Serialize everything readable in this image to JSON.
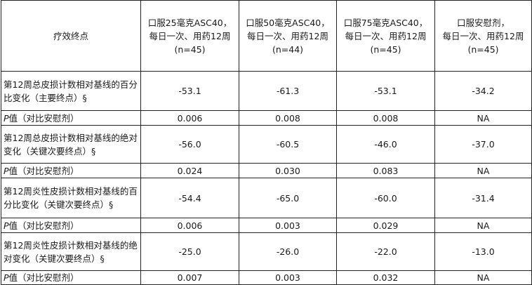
{
  "header": {
    "endpoint": "疗效终点",
    "groups": [
      {
        "line1": "口服25毫克ASC40，",
        "line2": "每日一次、用药12周",
        "line3": "(n=45)"
      },
      {
        "line1": "口服50毫克ASC40，",
        "line2": "每日一次、用药12周",
        "line3": "(n=44)"
      },
      {
        "line1": "口服75毫克ASC40，",
        "line2": "每日一次、用药12周",
        "line3": "(n=45)"
      },
      {
        "line1": "口服安慰剂，",
        "line2": "每日一次、用药12周",
        "line3": "(n=45)"
      }
    ]
  },
  "p_label": {
    "p": "P",
    "rest": "值（对比安慰剂）"
  },
  "rows": [
    {
      "label": "第12周总皮损计数相对基线的百分比变化（主要终点）§",
      "values": [
        "-53.1",
        "-61.3",
        "-53.1",
        "-34.2"
      ],
      "p_values": [
        "0.006",
        "0.008",
        "0.008",
        "NA"
      ]
    },
    {
      "label": "第12周总皮损计数相对基线的绝对变化（关键次要终点）§",
      "values": [
        "-56.0",
        "-60.5",
        "-46.0",
        "-37.0"
      ],
      "p_values": [
        "0.024",
        "0.030",
        "0.083",
        "NA"
      ]
    },
    {
      "label": "第12周炎性皮损计数相对基线的百分比变化（关键次要终点）§",
      "values": [
        "-54.4",
        "-65.0",
        "-60.0",
        "-31.4"
      ],
      "p_values": [
        "0.006",
        "0.003",
        "0.029",
        "NA"
      ]
    },
    {
      "label": "第12周炎性皮损计数相对基线的绝对变化（关键次要终点）§",
      "values": [
        "-25.0",
        "-26.0",
        "-22.0",
        "-13.0"
      ],
      "p_values": [
        "0.007",
        "0.003",
        "0.032",
        "NA"
      ]
    }
  ]
}
